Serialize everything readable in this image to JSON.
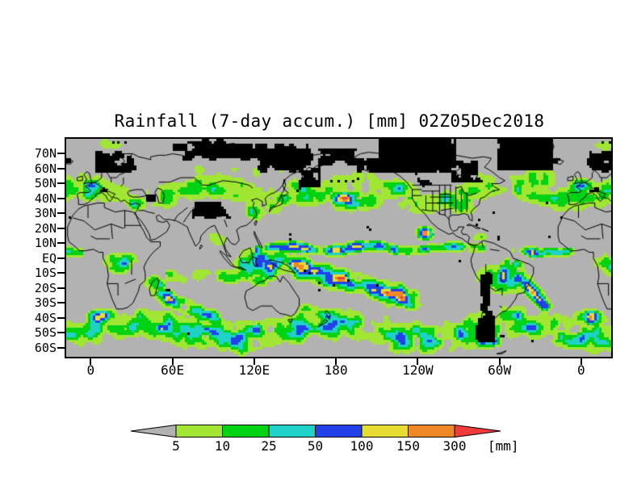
{
  "chart": {
    "title": "Rainfall (7-day accum.) [mm] 02Z05Dec2018"
  },
  "chart_data": {
    "type": "heatmap",
    "title": "Rainfall (7-day accum.) [mm] 02Z05Dec2018",
    "variable": "7-day accumulated rainfall",
    "unit": "mm",
    "time_label": "02Z05Dec2018",
    "projection": "global equirectangular, longitude wrapping from about 18W eastward around to 22E",
    "x_ticks": [
      "0",
      "60E",
      "120E",
      "180",
      "120W",
      "60W",
      "0"
    ],
    "y_ticks": [
      "70N",
      "60N",
      "50N",
      "40N",
      "30N",
      "20N",
      "10N",
      "EQ",
      "10S",
      "20S",
      "30S",
      "40S",
      "50S",
      "60S"
    ],
    "lon_axis_range_deg": [
      -18,
      382
    ],
    "lat_axis_range_deg": [
      -66,
      80
    ],
    "grid": false,
    "legend_position": "bottom",
    "color_scale": {
      "thresholds_mm": [
        "5",
        "10",
        "25",
        "50",
        "100",
        "150",
        "300"
      ],
      "unit_label": "[mm]",
      "bins": [
        {
          "range": "< 5 (no/low rain, background)",
          "color": "#b2b2b2",
          "shape": "left-arrow"
        },
        {
          "range": "5-10",
          "color": "#a0e632",
          "shape": "rect"
        },
        {
          "range": "10-25",
          "color": "#00d214",
          "shape": "rect"
        },
        {
          "range": "25-50",
          "color": "#1ed2c8",
          "shape": "rect"
        },
        {
          "range": "50-100",
          "color": "#2341e8",
          "shape": "rect"
        },
        {
          "range": "100-150",
          "color": "#e6dc32",
          "shape": "rect"
        },
        {
          "range": "150-300",
          "color": "#f08828",
          "shape": "rect"
        },
        {
          "range": "> 300",
          "color": "#f23c3c",
          "shape": "right-arrow"
        }
      ]
    },
    "map_colors": {
      "background_land_and_ocean": "#b2b2b2",
      "coastlines_and_borders": "#000000",
      "no_data_frozen_surface": "#000000"
    },
    "features": [
      "Narrow ITCZ band with yellow/orange cores near 5-10N across the Pacific and Atlantic",
      "Heavy rain (blue/orange) over the Maritime Continent extending into the SPCZ toward 30S, 140W",
      "Amazon basin rain with an orange SACZ streak extending southeast off Brazil",
      "North Pacific and North Atlantic storm tracks with green/cyan/blue bands and orange patches near 40N, 165W",
      "Rain over western Europe and an orange-cored cluster near Turkey/Caucasus",
      "Southern Ocean storm-track bands at 40-60S with orange streaks southwest of Africa and near Drake Passage",
      "Congo basin and Madagascar rainfall; dry gray subtropical highs, Sahara, Arabia and central Australia",
      "Black cells mark no-data/frozen surfaces: Arctic coasts, Greenland, Canadian Arctic, Siberia, Tibet, Andes/Patagonia"
    ]
  }
}
